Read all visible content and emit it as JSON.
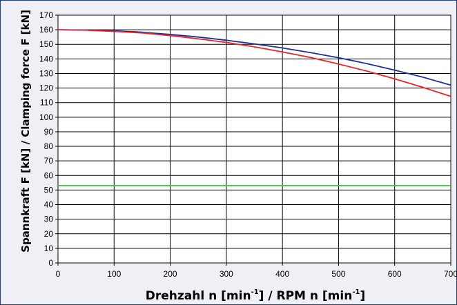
{
  "chart_data": {
    "type": "line",
    "xlabel": {
      "main": "Drehzahl n [min",
      "sup1": "-1",
      "mid": "] / RPM n [min",
      "sup2": "-1",
      "end": "]"
    },
    "ylabel": "Spannkraft F [kN]  / Clamping force F [kN]",
    "xlim": [
      0,
      700
    ],
    "ylim": [
      0,
      170
    ],
    "x_ticks": [
      0,
      100,
      200,
      300,
      400,
      500,
      600,
      700
    ],
    "y_ticks": [
      0,
      10,
      20,
      30,
      40,
      50,
      60,
      70,
      80,
      90,
      100,
      110,
      120,
      130,
      140,
      150,
      160,
      170
    ],
    "grid": true,
    "legend": "none",
    "series": [
      {
        "color": "#1f2f9a",
        "x": [
          0,
          50,
          100,
          150,
          200,
          250,
          300,
          350,
          400,
          450,
          500,
          550,
          600,
          650,
          700
        ],
        "y": [
          160,
          159.8,
          159.3,
          158.3,
          156.8,
          155,
          152.8,
          150.3,
          147.5,
          144.3,
          140.8,
          136.8,
          132.3,
          127.5,
          122
        ]
      },
      {
        "color": "#ee2222",
        "x": [
          0,
          50,
          100,
          150,
          200,
          250,
          300,
          350,
          400,
          450,
          500,
          550,
          600,
          650,
          700
        ],
        "y": [
          160,
          159.7,
          158.9,
          157.8,
          156,
          153.8,
          151.3,
          148.3,
          144.8,
          141,
          136.5,
          131.7,
          126.3,
          120.5,
          114.3
        ]
      },
      {
        "color": "#33cc33",
        "x": [
          0,
          700
        ],
        "y": [
          53,
          53
        ]
      }
    ]
  }
}
